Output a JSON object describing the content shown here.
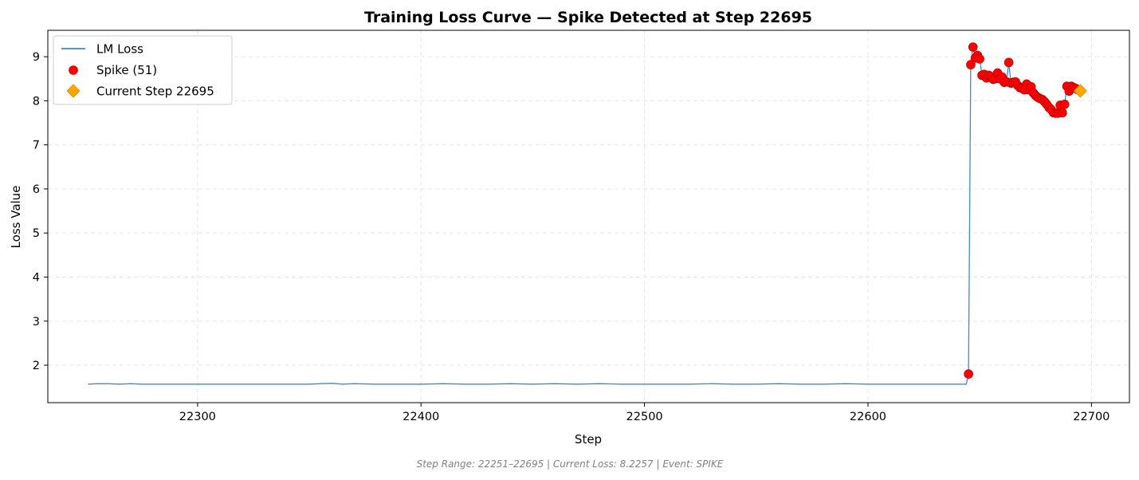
{
  "chart_data": {
    "type": "line",
    "title": "Training Loss Curve — Spike Detected at Step 22695",
    "xlabel": "Step",
    "ylabel": "Loss Value",
    "xlim": [
      22233,
      22717
    ],
    "ylim": [
      1.15,
      9.6
    ],
    "xticks": [
      22300,
      22400,
      22500,
      22600,
      22700
    ],
    "yticks": [
      2,
      3,
      4,
      5,
      6,
      7,
      8,
      9
    ],
    "grid": true,
    "legend_position": "top-left",
    "legend": [
      {
        "label": "LM Loss",
        "kind": "line",
        "color": "#1f77b4"
      },
      {
        "label": "Spike (51)",
        "kind": "marker",
        "color": "#ff0000"
      },
      {
        "label": "Current Step 22695",
        "kind": "diamond",
        "color": "#ffa500"
      }
    ],
    "series": [
      {
        "name": "LM Loss",
        "kind": "line",
        "color": "#1f77b4",
        "x": [
          22251,
          22255,
          22260,
          22265,
          22270,
          22275,
          22280,
          22290,
          22300,
          22310,
          22320,
          22330,
          22340,
          22350,
          22355,
          22360,
          22365,
          22370,
          22380,
          22390,
          22400,
          22410,
          22420,
          22430,
          22440,
          22450,
          22460,
          22470,
          22480,
          22490,
          22500,
          22510,
          22520,
          22530,
          22540,
          22550,
          22560,
          22570,
          22580,
          22590,
          22600,
          22610,
          22620,
          22630,
          22640,
          22644,
          22645,
          22646,
          22647,
          22648,
          22649,
          22650,
          22651,
          22652,
          22653,
          22654,
          22655,
          22656,
          22657,
          22658,
          22659,
          22660,
          22661,
          22662,
          22663,
          22664,
          22665,
          22666,
          22667,
          22668,
          22669,
          22670,
          22671,
          22672,
          22673,
          22674,
          22675,
          22676,
          22677,
          22678,
          22679,
          22680,
          22681,
          22682,
          22683,
          22684,
          22685,
          22686,
          22687,
          22688,
          22689,
          22690,
          22691,
          22692,
          22693,
          22694,
          22695
        ],
        "y": [
          1.57,
          1.58,
          1.58,
          1.57,
          1.58,
          1.57,
          1.57,
          1.57,
          1.57,
          1.57,
          1.57,
          1.57,
          1.57,
          1.57,
          1.58,
          1.59,
          1.57,
          1.58,
          1.57,
          1.57,
          1.57,
          1.58,
          1.57,
          1.57,
          1.58,
          1.57,
          1.58,
          1.57,
          1.58,
          1.57,
          1.57,
          1.57,
          1.57,
          1.58,
          1.57,
          1.57,
          1.58,
          1.57,
          1.57,
          1.58,
          1.57,
          1.57,
          1.57,
          1.57,
          1.57,
          1.57,
          1.8,
          8.82,
          9.22,
          8.97,
          9.03,
          8.95,
          8.58,
          8.6,
          8.52,
          8.58,
          8.55,
          8.49,
          8.5,
          8.63,
          8.5,
          8.54,
          8.42,
          8.43,
          8.87,
          8.4,
          8.42,
          8.43,
          8.35,
          8.3,
          8.28,
          8.25,
          8.38,
          8.25,
          8.32,
          8.18,
          8.12,
          8.08,
          8.05,
          8.03,
          7.98,
          7.92,
          7.85,
          7.8,
          7.73,
          7.72,
          7.72,
          7.9,
          7.73,
          7.92,
          8.33,
          8.22,
          8.33,
          8.3,
          8.28,
          8.25,
          8.23
        ]
      },
      {
        "name": "Spike (51)",
        "kind": "scatter",
        "color": "#ff0000",
        "x": [
          22645,
          22646,
          22647,
          22648,
          22649,
          22650,
          22651,
          22652,
          22653,
          22654,
          22655,
          22656,
          22657,
          22658,
          22659,
          22660,
          22661,
          22662,
          22663,
          22664,
          22665,
          22666,
          22667,
          22668,
          22669,
          22670,
          22671,
          22672,
          22673,
          22674,
          22675,
          22676,
          22677,
          22678,
          22679,
          22680,
          22681,
          22682,
          22683,
          22684,
          22685,
          22686,
          22687,
          22688,
          22689,
          22690,
          22691,
          22692,
          22693,
          22694,
          22695
        ],
        "y": [
          1.8,
          8.82,
          9.22,
          8.97,
          9.03,
          8.95,
          8.58,
          8.6,
          8.52,
          8.58,
          8.55,
          8.49,
          8.5,
          8.63,
          8.5,
          8.54,
          8.42,
          8.43,
          8.87,
          8.4,
          8.42,
          8.43,
          8.35,
          8.3,
          8.28,
          8.25,
          8.38,
          8.25,
          8.32,
          8.18,
          8.12,
          8.08,
          8.05,
          8.03,
          7.98,
          7.92,
          7.85,
          7.8,
          7.73,
          7.72,
          7.72,
          7.9,
          7.73,
          7.92,
          8.33,
          8.22,
          8.33,
          8.3,
          8.28,
          8.25,
          8.23
        ]
      },
      {
        "name": "Current Step 22695",
        "kind": "diamond",
        "color": "#ffa500",
        "x": [
          22695
        ],
        "y": [
          8.2257
        ]
      }
    ],
    "footer": "Step Range: 22251–22695 | Current Loss: 8.2257 | Event: SPIKE"
  }
}
